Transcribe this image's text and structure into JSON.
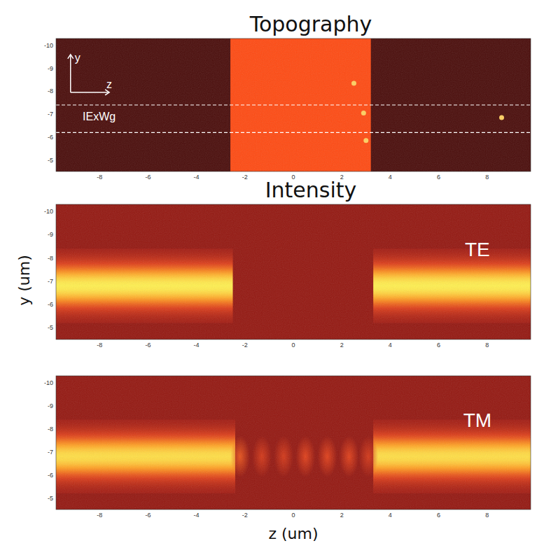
{
  "chart_data": [
    {
      "type": "image",
      "title": "Topography",
      "xlim": [
        -9.8,
        9.8
      ],
      "ylim": [
        -10.3,
        -4.5
      ],
      "xticks": [
        -8,
        -6,
        -4,
        -2,
        0,
        2,
        4,
        6,
        8
      ],
      "yticks": [
        -10,
        -9,
        -8,
        -7,
        -6,
        -5
      ],
      "regions": [
        {
          "z": [
            -9.8,
            9.8
          ],
          "y": [
            -10.3,
            -4.5
          ],
          "color": "#4a0c0a"
        },
        {
          "z": [
            -2.6,
            3.2
          ],
          "y": [
            -10.3,
            -4.5
          ],
          "color": "#ff4a12"
        }
      ],
      "particles": [
        {
          "z": 2.9,
          "y": -7.05
        },
        {
          "z": 3.0,
          "y": -5.85
        },
        {
          "z": 8.6,
          "y": -6.85
        },
        {
          "z": 2.5,
          "y": -8.35
        }
      ],
      "guide_lines": [
        -7.4,
        -6.2
      ],
      "annotations": [
        {
          "text": "IExWg",
          "z": -8.7,
          "y": -6.85
        }
      ],
      "axis_icon": {
        "origin": [
          -9.2,
          -7.95
        ],
        "y_end": -9.6,
        "z_end": -7.6,
        "labels": [
          "y",
          "z"
        ]
      }
    },
    {
      "type": "image",
      "title": "Intensity",
      "ylabel": "y (um)",
      "xlim": [
        -9.8,
        9.8
      ],
      "ylim": [
        -10.3,
        -4.5
      ],
      "xticks": [
        -8,
        -6,
        -4,
        -2,
        0,
        2,
        4,
        6,
        8
      ],
      "yticks": [
        -10,
        -9,
        -8,
        -7,
        -6,
        -5
      ],
      "background": 0.22,
      "bands": [
        {
          "z": [
            -9.8,
            -2.5
          ],
          "y_center": -6.8,
          "y_width": 1.6,
          "level": 1.0
        },
        {
          "z": [
            3.3,
            9.8
          ],
          "y_center": -6.8,
          "y_width": 1.6,
          "level": 1.0
        }
      ],
      "spots": [],
      "annotations": [
        {
          "text": "TE",
          "z": 7.6,
          "y": -8.3
        }
      ]
    },
    {
      "type": "image",
      "xlabel": "z (um)",
      "xlim": [
        -9.8,
        9.8
      ],
      "ylim": [
        -10.3,
        -4.5
      ],
      "xticks": [
        -8,
        -6,
        -4,
        -2,
        0,
        2,
        4,
        6,
        8
      ],
      "yticks": [
        -10,
        -9,
        -8,
        -7,
        -6,
        -5
      ],
      "background": 0.22,
      "bands": [
        {
          "z": [
            -9.8,
            -2.4
          ],
          "y_center": -6.8,
          "y_width": 1.6,
          "level": 0.95
        },
        {
          "z": [
            3.3,
            9.8
          ],
          "y_center": -6.8,
          "y_width": 1.6,
          "level": 0.95
        }
      ],
      "spots": [
        {
          "z": -2.2,
          "y": -6.8,
          "level": 0.55
        },
        {
          "z": -1.3,
          "y": -6.8,
          "level": 0.45
        },
        {
          "z": -0.4,
          "y": -6.8,
          "level": 0.45
        },
        {
          "z": 0.5,
          "y": -6.8,
          "level": 0.5
        },
        {
          "z": 1.4,
          "y": -6.8,
          "level": 0.5
        },
        {
          "z": 2.3,
          "y": -6.8,
          "level": 0.5
        },
        {
          "z": 3.1,
          "y": -6.8,
          "level": 0.45
        }
      ],
      "annotations": [
        {
          "text": "TM",
          "z": 7.6,
          "y": -8.3
        }
      ]
    }
  ]
}
